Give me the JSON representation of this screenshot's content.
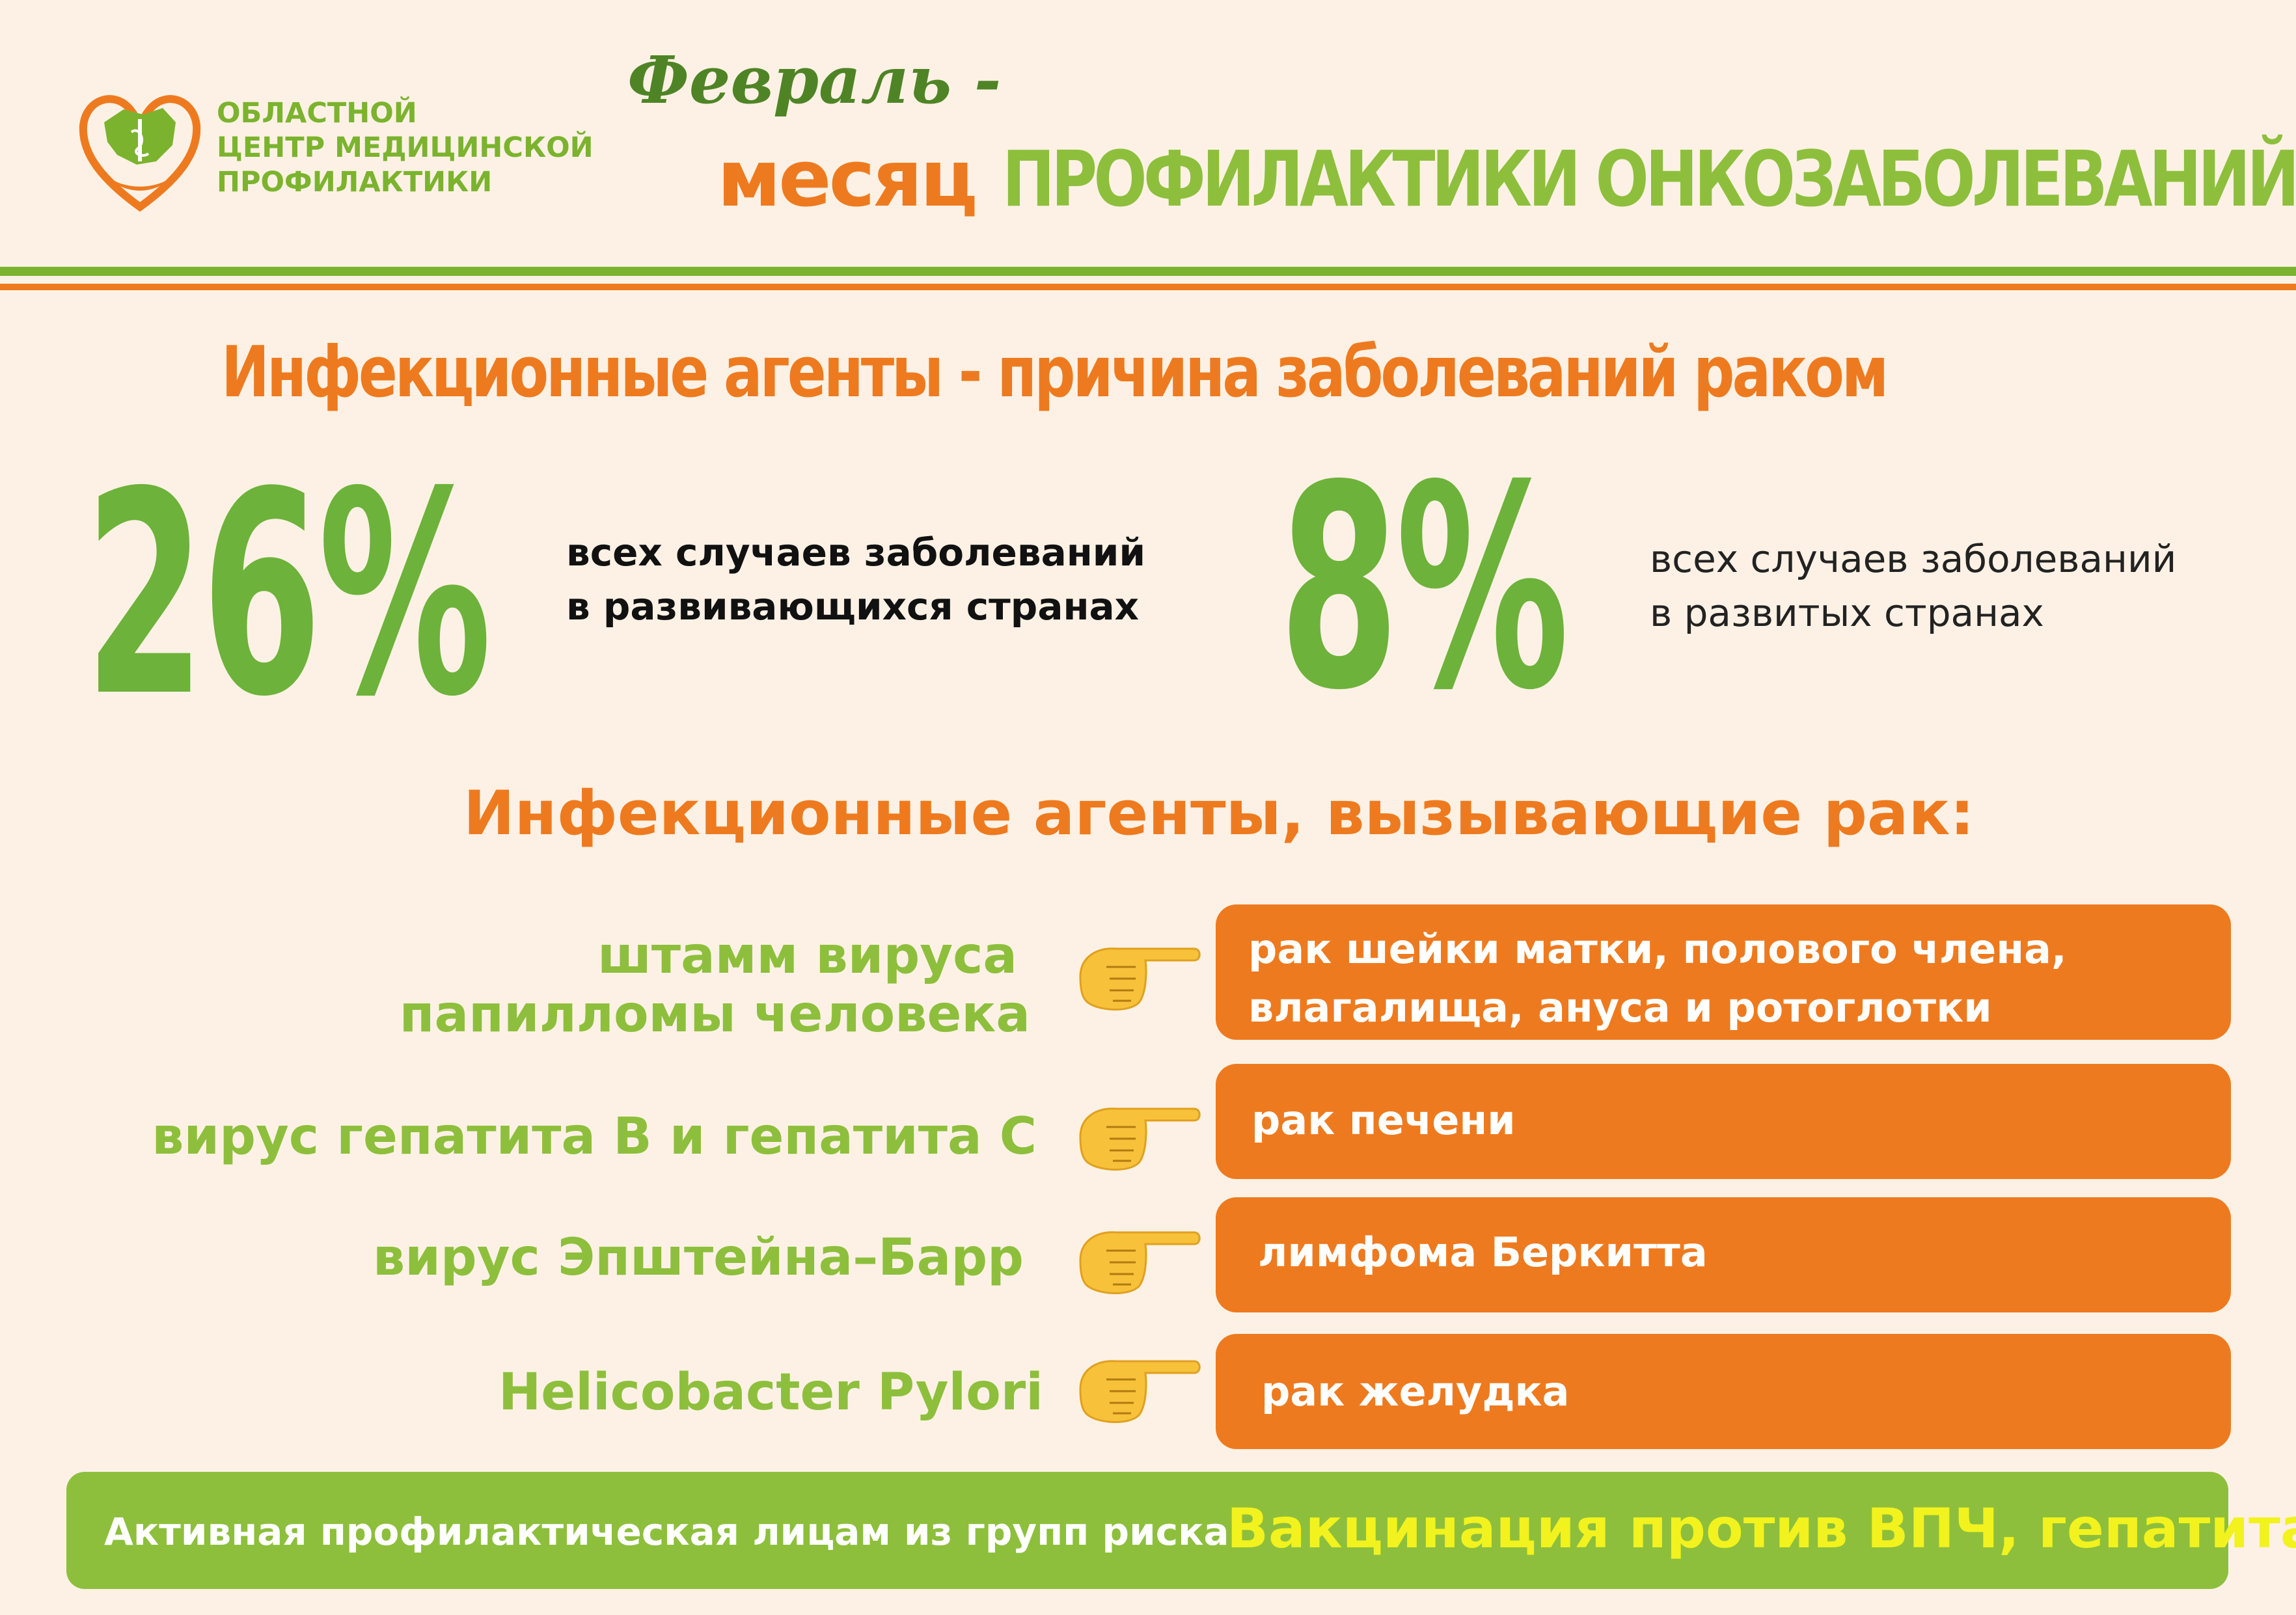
{
  "org": {
    "line1": "ОБЛАСТНОЙ",
    "line2": "ЦЕНТР МЕДИЦИНСКОЙ",
    "line3": "ПРОФИЛАКТИКИ"
  },
  "title": {
    "script": "Февраль -",
    "word": "месяц",
    "topic": "ПРОФИЛАКТИКИ ОНКОЗАБОЛЕВАНИЙ"
  },
  "headline": "Инфекционные агенты - причина заболеваний раком",
  "stats": [
    {
      "value": "26%",
      "line1": "всех случаев заболеваний",
      "line2": "в развивающихся странах"
    },
    {
      "value": "8%",
      "line1": "всех случаев заболеваний",
      "line2": "в развитых странах"
    }
  ],
  "subhead": "Инфекционные агенты, вызывающие рак:",
  "rows": [
    {
      "agent_line1": "штамм вируса",
      "agent_line2": "папилломы человека",
      "result_line1": "рак шейки матки, полового члена,",
      "result_line2": "влагалища, ануса и ротоглотки"
    },
    {
      "agent_line1": "вирус гепатита В и гепатита С",
      "result_line1": "рак печени"
    },
    {
      "agent_line1": "вирус Эпштейна–Барр",
      "result_line1": "лимфома Беркитта"
    },
    {
      "agent_line1": "Helicobacter Pylori",
      "result_line1": "рак желудка"
    }
  ],
  "banner": {
    "left": "Активная профилактическая  лицам из групп риска",
    "right": "Вакцинация против ВПЧ, гепатита В"
  },
  "colors": {
    "green": "#8dbf3c",
    "dark_green": "#6db23a",
    "orange": "#ee7a1f",
    "background": "#fcf1e4",
    "yellow": "#f2f21e"
  },
  "icons": {
    "logo": "heart-map-logo",
    "pointer": "pointing-hand-icon"
  }
}
